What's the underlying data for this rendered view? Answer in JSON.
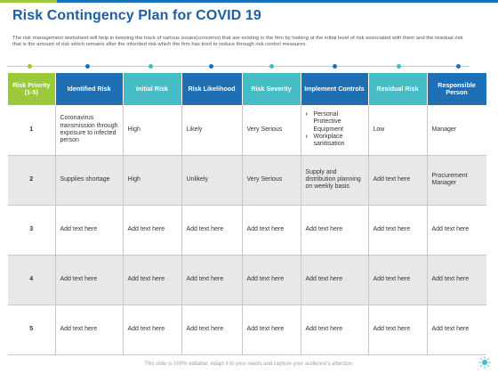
{
  "title": "Risk Contingency Plan for COVID 19",
  "description": "The risk management worksheet will help in keeping the track  of various issues(concerns) that are  existing in the firm by looking at the initial level of risk associated with them and the residual risk that is the amount of risk which remains after  the inherited risk which the firm has tried to reduce through risk control measures.",
  "colors": {
    "green": "#9cc93b",
    "blue": "#1f6fb5",
    "teal": "#45bcc6",
    "title": "#1f5fa0",
    "row_grey": "#e8e8e8"
  },
  "headers": [
    "Risk Priority (1-5)",
    "Identified Risk",
    "Initial Risk",
    "Risk Likelihood",
    "Risk Severity",
    "Implement Controls",
    "Residual Risk",
    "Responsible Person"
  ],
  "rows": [
    {
      "priority": "1",
      "identified": "Coronavirus transmission through exposure to infected person",
      "initial": "High",
      "likelihood": "Likely",
      "severity": "Very Serious",
      "controls": [
        "Personal Protective Equipment",
        "Workplace sanitisation"
      ],
      "residual": "Low",
      "person": "Manager"
    },
    {
      "priority": "2",
      "identified": "Supplies shortage",
      "initial": "High",
      "likelihood": "Unlikely",
      "severity": "Very Serious",
      "controls_text": "Supply and distribution planning on weekly basis",
      "residual": "Add text here",
      "person": "Procurement Manager"
    },
    {
      "priority": "3",
      "identified": "Add text here",
      "initial": "Add text here",
      "likelihood": "Add text here",
      "severity": "Add text here",
      "controls_text": "Add text here",
      "residual": "Add text here",
      "person": "Add text here"
    },
    {
      "priority": "4",
      "identified": "Add text here",
      "initial": "Add text here",
      "likelihood": "Add text here",
      "severity": "Add text here",
      "controls_text": "Add text here",
      "residual": "Add text here",
      "person": "Add text here"
    },
    {
      "priority": "5",
      "identified": "Add text here",
      "initial": "Add text here",
      "likelihood": "Add text here",
      "severity": "Add text here",
      "controls_text": "Add text here",
      "residual": "Add text here",
      "person": "Add text here"
    }
  ],
  "footer": "This slide is 100% editable. Adapt it to your needs and capture your audience's attention.",
  "icons": {
    "corner": "sun-logo-icon"
  }
}
